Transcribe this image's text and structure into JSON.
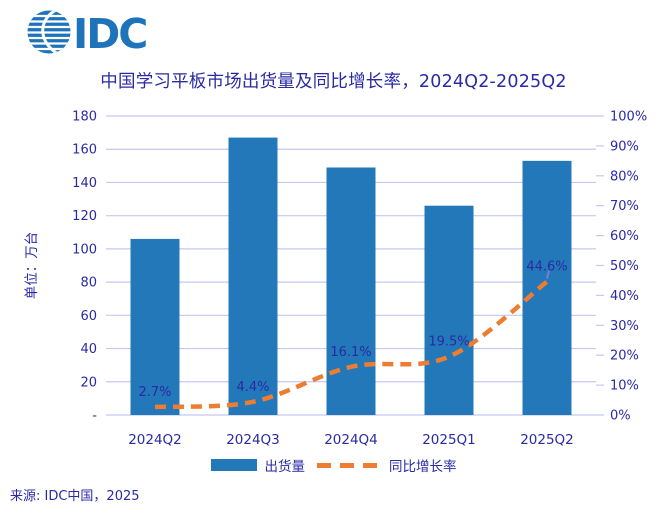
{
  "logo": {
    "text": "IDC"
  },
  "title": "中国学习平板市场出货量及同比增长率，2024Q2-2025Q2",
  "source": "来源: IDC中国，2025",
  "colors": {
    "text": "#2A2AA4",
    "grid": "#C6C7F2",
    "bar": "#2378B9",
    "line": "#ED7D31",
    "logo": "#1E73BA",
    "marker": "#7A7AD0"
  },
  "chart_data": {
    "type": "bar+line",
    "title": "中国学习平板市场出货量及同比增长率，2024Q2-2025Q2",
    "categories": [
      "2024Q2",
      "2024Q3",
      "2024Q4",
      "2025Q1",
      "2025Q2"
    ],
    "series": [
      {
        "name": "出货量",
        "type": "bar",
        "axis": "left",
        "values": [
          106,
          167,
          149,
          126,
          153
        ]
      },
      {
        "name": "同比增长率",
        "type": "dashed-line",
        "axis": "right",
        "values": [
          2.7,
          4.4,
          16.1,
          19.5,
          44.6
        ],
        "point_labels": [
          "2.7%",
          "4.4%",
          "16.1%",
          "19.5%",
          "44.6%"
        ]
      }
    ],
    "left_axis": {
      "title": "单位：万台",
      "min": 0,
      "max": 180,
      "step": 20,
      "tick_labels": [
        "180",
        "160",
        "140",
        "120",
        "100",
        "80",
        "60",
        "40",
        "20",
        "-"
      ]
    },
    "right_axis": {
      "min": 0,
      "max": 100,
      "step": 10,
      "tick_labels": [
        "100%",
        "90%",
        "80%",
        "70%",
        "60%",
        "50%",
        "40%",
        "30%",
        "20%",
        "10%",
        "0%"
      ]
    },
    "grid": "horizontal",
    "legend_position": "bottom"
  }
}
